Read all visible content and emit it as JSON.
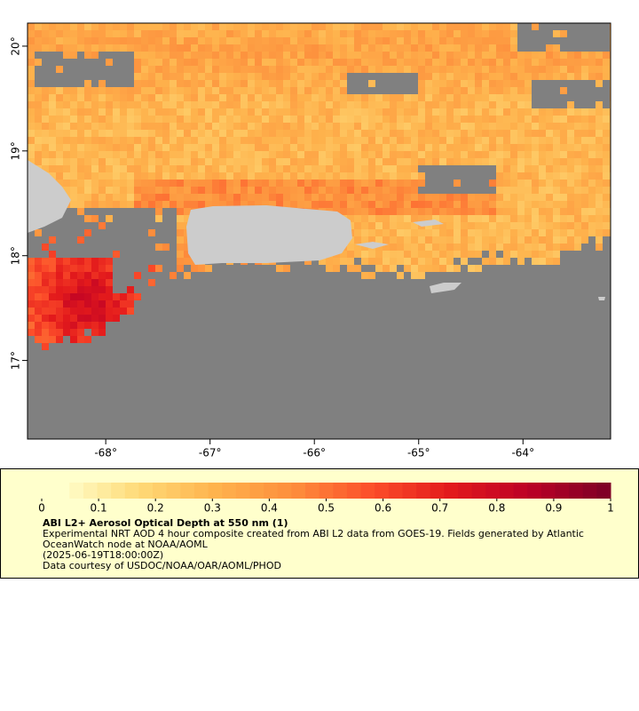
{
  "map": {
    "xlim": [
      -68.75,
      -63.16
    ],
    "ylim": [
      16.25,
      20.22
    ],
    "xticks": [
      {
        "value": -68,
        "label": "-68°"
      },
      {
        "value": -67,
        "label": "-67°"
      },
      {
        "value": -66,
        "label": "-66°"
      },
      {
        "value": -65,
        "label": "-65°"
      },
      {
        "value": -64,
        "label": "-64°"
      }
    ],
    "yticks": [
      {
        "value": 17,
        "label": "17°"
      },
      {
        "value": 18,
        "label": "18°"
      },
      {
        "value": 19,
        "label": "19°"
      },
      {
        "value": 20,
        "label": "20°"
      }
    ],
    "missing_color": "#808080",
    "land_color": "#cccccc"
  },
  "colorbar": {
    "lim": [
      0,
      1
    ],
    "ticks": [
      0,
      0.1,
      0.2,
      0.3,
      0.4,
      0.5,
      0.6,
      0.7,
      0.8,
      0.9,
      1
    ],
    "steps": 40,
    "colors": [
      "#ffffcc",
      "#fed976",
      "#feb24c",
      "#fd8d3c",
      "#fc4e2a",
      "#e31a1c",
      "#bd0026",
      "#800026"
    ]
  },
  "caption": {
    "title": "ABI L2+ Aerosol Optical Depth at 550 nm (1)",
    "lines": [
      "Experimental NRT AOD 4 hour composite created from ABI L2 data from GOES-19. Fields generated by Atlantic OceanWatch node at NOAA/AOML",
      "(2025-06-19T18:00:00Z)",
      "Data courtesy of USDOC/NOAA/OAR/AOML/PHOD"
    ]
  }
}
